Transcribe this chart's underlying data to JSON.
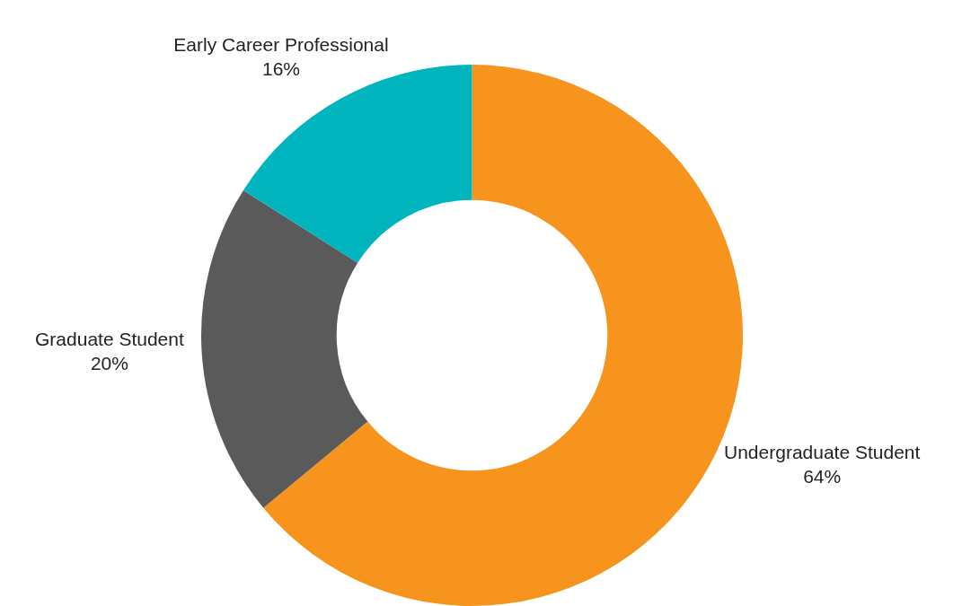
{
  "chart_data": {
    "type": "donut",
    "categories": [
      "Undergraduate Student",
      "Graduate Student",
      "Early Career Professional"
    ],
    "values": [
      64,
      20,
      16
    ],
    "colors": [
      "#f7941d",
      "#5a5a5a",
      "#00b5bd"
    ],
    "value_labels": [
      "64%",
      "20%",
      "16%"
    ],
    "legend": false
  }
}
